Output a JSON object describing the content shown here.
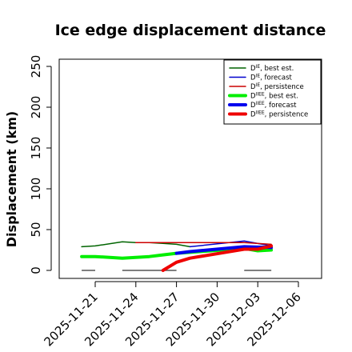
{
  "chart_data": {
    "type": "line",
    "title": "Ice edge displacement distance",
    "ylabel": "Displacement (km)",
    "xlabel": "",
    "ylim": [
      0,
      260
    ],
    "yticks": [
      0,
      50,
      100,
      150,
      200,
      250
    ],
    "xlim": [
      "2025-11-19",
      "2025-12-07"
    ],
    "xticks": [
      "2025-11-21",
      "2025-11-24",
      "2025-11-27",
      "2025-11-30",
      "2025-12-03",
      "2025-12-06"
    ],
    "highlight_tick": "2025-11-27",
    "highlight_color": "#228B22",
    "grid": false,
    "legend_position": "top-right",
    "legend": [
      {
        "symbol": "D",
        "sup": "IE",
        "text": ", best est.",
        "color": "#006400",
        "width": 1.5
      },
      {
        "symbol": "D",
        "sup": "IE",
        "text": ", forecast",
        "color": "#0000cd",
        "width": 1.5
      },
      {
        "symbol": "D",
        "sup": "IE",
        "text": ", persistence",
        "color": "#cc0000",
        "width": 1.5
      },
      {
        "symbol": "D",
        "sup": "IIEE",
        "text": ", best est.",
        "color": "#00ee00",
        "width": 4
      },
      {
        "symbol": "D",
        "sup": "IIEE",
        "text": ", forecast",
        "color": "#0000ee",
        "width": 4
      },
      {
        "symbol": "D",
        "sup": "IIEE",
        "text": ", persistence",
        "color": "#ee0000",
        "width": 4
      }
    ],
    "series": [
      {
        "name": "D^IE best est.",
        "color": "#006400",
        "width": 1.5,
        "points": [
          [
            "2025-11-20",
            29
          ],
          [
            "2025-11-21",
            30
          ],
          [
            "2025-11-23",
            35
          ],
          [
            "2025-11-24",
            34
          ],
          [
            "2025-11-25",
            34
          ],
          [
            "2025-11-26",
            33
          ],
          [
            "2025-11-27",
            32
          ],
          [
            "2025-11-28",
            29
          ]
        ]
      },
      {
        "name": "D^IE forecast",
        "color": "#0000cd",
        "width": 1.5,
        "points": [
          [
            "2025-11-28",
            29
          ],
          [
            "2025-12-02",
            36
          ],
          [
            "2025-12-04",
            30
          ]
        ]
      },
      {
        "name": "D^IE persistence",
        "color": "#cc0000",
        "width": 1.5,
        "points": [
          [
            "2025-11-24",
            34
          ],
          [
            "2025-12-02",
            34
          ],
          [
            "2025-12-04",
            32
          ]
        ]
      },
      {
        "name": "D^IIEE best est.",
        "color": "#00ee00",
        "width": 4,
        "points": [
          [
            "2025-11-20",
            17
          ],
          [
            "2025-11-21",
            17
          ],
          [
            "2025-11-23",
            15
          ],
          [
            "2025-11-24",
            16
          ],
          [
            "2025-11-25",
            17
          ],
          [
            "2025-11-26",
            19
          ],
          [
            "2025-11-27",
            21
          ],
          [
            "2025-12-02",
            27
          ],
          [
            "2025-12-03",
            24
          ],
          [
            "2025-12-04",
            25
          ]
        ]
      },
      {
        "name": "D^IIEE forecast",
        "color": "#0000ee",
        "width": 4,
        "points": [
          [
            "2025-11-27",
            21
          ],
          [
            "2025-11-28",
            23
          ],
          [
            "2025-12-02",
            29
          ],
          [
            "2025-12-04",
            28
          ]
        ]
      },
      {
        "name": "D^IIEE persistence",
        "color": "#ee0000",
        "width": 4,
        "points": [
          [
            "2025-11-26",
            0
          ],
          [
            "2025-11-27",
            10
          ],
          [
            "2025-11-28",
            15
          ],
          [
            "2025-12-02",
            26
          ],
          [
            "2025-12-03",
            26
          ],
          [
            "2025-12-04",
            30
          ]
        ]
      }
    ],
    "baseline_segments": [
      {
        "from": "2025-11-20",
        "to": "2025-11-21",
        "y": 0,
        "color": "#555555"
      },
      {
        "from": "2025-11-23",
        "to": "2025-11-27",
        "y": 0,
        "color": "#555555"
      },
      {
        "from": "2025-12-02",
        "to": "2025-12-04",
        "y": 0,
        "color": "#555555"
      }
    ]
  }
}
